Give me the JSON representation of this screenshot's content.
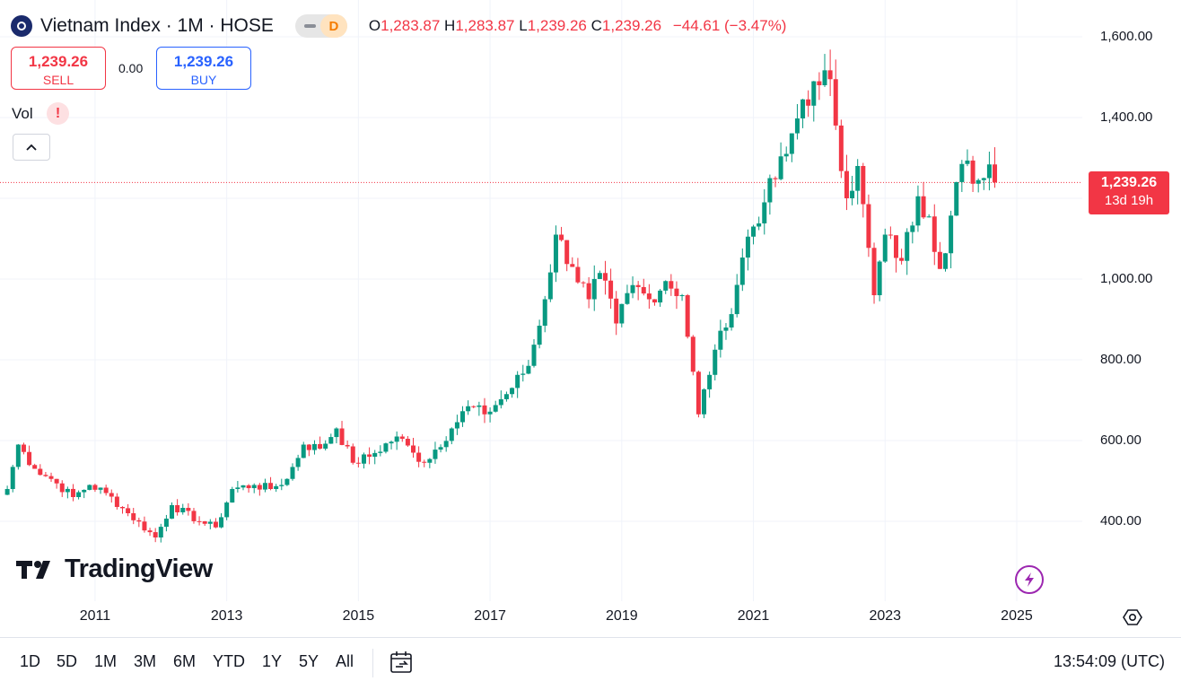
{
  "header": {
    "symbol_title": "Vietnam Index · 1M · HOSE",
    "badge_label": "D",
    "ohlc": {
      "open_label": "O",
      "open": "1,283.87",
      "high_label": "H",
      "high": "1,283.87",
      "low_label": "L",
      "low": "1,239.26",
      "close_label": "C",
      "close": "1,239.26",
      "change": "−44.61 (−3.47%)"
    }
  },
  "trade": {
    "sell_price": "1,239.26",
    "sell_label": "SELL",
    "spread": "0.00",
    "buy_price": "1,239.26",
    "buy_label": "BUY"
  },
  "indicator": {
    "vol_label": "Vol",
    "alert_symbol": "!"
  },
  "collapse_symbol": "^",
  "last_price": {
    "price": "1,239.26",
    "countdown": "13d 19h"
  },
  "brand": {
    "name": "TradingView"
  },
  "bottom_bar": {
    "ranges": [
      "1D",
      "5D",
      "1M",
      "3M",
      "6M",
      "YTD",
      "1Y",
      "5Y",
      "All"
    ],
    "clock": "13:54:09 (UTC)"
  },
  "colors": {
    "up": "#089981",
    "down": "#f23645",
    "grid": "#f0f3fa",
    "last_price_line": "#f23645"
  },
  "icons": [
    "index-logo-icon",
    "alert-icon",
    "calendar-range-icon",
    "lightning-icon",
    "settings-icon"
  ],
  "chart_data": {
    "type": "candlestick",
    "title": "",
    "xlabel": "",
    "ylabel": "",
    "interval": "1M",
    "ylim": [
      285,
      1620
    ],
    "y_ticks": [
      400,
      600,
      800,
      1000,
      1200,
      1400,
      1600
    ],
    "y_tick_labels": [
      "400.00",
      "600.00",
      "800.00",
      "1,000.00",
      "",
      "1,400.00",
      "1,600.00"
    ],
    "x_ticks": [
      "2011",
      "2013",
      "2015",
      "2017",
      "2019",
      "2021",
      "2023",
      "2025"
    ],
    "x_range": [
      "2009-08",
      "2025-10"
    ],
    "grid": true,
    "last_price": 1239.26,
    "anchors": [
      {
        "t": "2009-09",
        "v": 480
      },
      {
        "t": "2009-11",
        "v": 590
      },
      {
        "t": "2010-02",
        "v": 530
      },
      {
        "t": "2010-05",
        "v": 505
      },
      {
        "t": "2010-09",
        "v": 460
      },
      {
        "t": "2010-12",
        "v": 490
      },
      {
        "t": "2011-03",
        "v": 470
      },
      {
        "t": "2011-07",
        "v": 420
      },
      {
        "t": "2011-12",
        "v": 360
      },
      {
        "t": "2012-03",
        "v": 440
      },
      {
        "t": "2012-08",
        "v": 400
      },
      {
        "t": "2012-11",
        "v": 385
      },
      {
        "t": "2013-02",
        "v": 480
      },
      {
        "t": "2013-06",
        "v": 490
      },
      {
        "t": "2013-09",
        "v": 480
      },
      {
        "t": "2013-12",
        "v": 505
      },
      {
        "t": "2014-03",
        "v": 590
      },
      {
        "t": "2014-06",
        "v": 580
      },
      {
        "t": "2014-09",
        "v": 630
      },
      {
        "t": "2014-12",
        "v": 545
      },
      {
        "t": "2015-03",
        "v": 560
      },
      {
        "t": "2015-08",
        "v": 610
      },
      {
        "t": "2015-11",
        "v": 570
      },
      {
        "t": "2016-01",
        "v": 545
      },
      {
        "t": "2016-06",
        "v": 630
      },
      {
        "t": "2016-09",
        "v": 685
      },
      {
        "t": "2016-12",
        "v": 665
      },
      {
        "t": "2017-04",
        "v": 715
      },
      {
        "t": "2017-08",
        "v": 785
      },
      {
        "t": "2017-11",
        "v": 950
      },
      {
        "t": "2018-01",
        "v": 1110
      },
      {
        "t": "2018-04",
        "v": 1030
      },
      {
        "t": "2018-07",
        "v": 950
      },
      {
        "t": "2018-09",
        "v": 1015
      },
      {
        "t": "2018-12",
        "v": 890
      },
      {
        "t": "2019-03",
        "v": 985
      },
      {
        "t": "2019-06",
        "v": 950
      },
      {
        "t": "2019-09",
        "v": 995
      },
      {
        "t": "2019-12",
        "v": 960
      },
      {
        "t": "2020-03",
        "v": 665
      },
      {
        "t": "2020-06",
        "v": 825
      },
      {
        "t": "2020-08",
        "v": 880
      },
      {
        "t": "2020-12",
        "v": 1105
      },
      {
        "t": "2021-03",
        "v": 1190
      },
      {
        "t": "2021-07",
        "v": 1310
      },
      {
        "t": "2021-10",
        "v": 1445
      },
      {
        "t": "2022-01",
        "v": 1480
      },
      {
        "t": "2022-03",
        "v": 1495
      },
      {
        "t": "2022-06",
        "v": 1200
      },
      {
        "t": "2022-08",
        "v": 1280
      },
      {
        "t": "2022-11",
        "v": 960
      },
      {
        "t": "2023-01",
        "v": 1110
      },
      {
        "t": "2023-04",
        "v": 1045
      },
      {
        "t": "2023-07",
        "v": 1205
      },
      {
        "t": "2023-09",
        "v": 1155
      },
      {
        "t": "2023-11",
        "v": 1025
      },
      {
        "t": "2024-03",
        "v": 1285
      },
      {
        "t": "2024-06",
        "v": 1245
      },
      {
        "t": "2024-07",
        "v": 1250
      },
      {
        "t": "2024-08",
        "v": 1283.87
      },
      {
        "t": "2024-09",
        "v": 1239.26
      }
    ]
  }
}
